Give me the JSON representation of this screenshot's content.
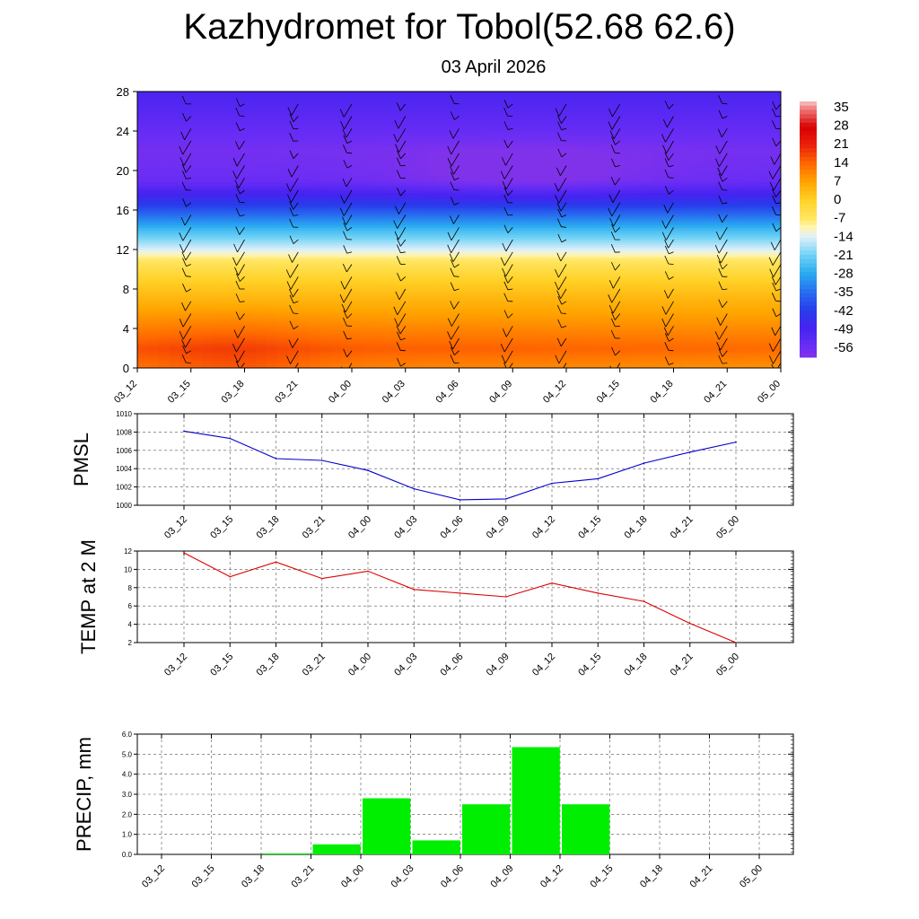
{
  "title": "Kazhydromet for Tobol(52.68 62.6)",
  "subtitle": "03 April 2026",
  "time_labels": [
    "03_12",
    "03_15",
    "03_18",
    "03_21",
    "04_00",
    "04_03",
    "04_06",
    "04_09",
    "04_12",
    "04_15",
    "04_18",
    "04_21",
    "05_00"
  ],
  "chart_data": [
    {
      "type": "heatmap",
      "title": "",
      "x": [
        "03_12",
        "03_15",
        "03_18",
        "03_21",
        "04_00",
        "04_03",
        "04_06",
        "04_09",
        "04_12",
        "04_15",
        "04_18",
        "04_21",
        "05_00"
      ],
      "y_ticks": [
        0,
        4,
        8,
        12,
        16,
        20,
        24,
        28
      ],
      "ylim": [
        0,
        28
      ],
      "colorbar_labels": [
        "35",
        "28",
        "21",
        "14",
        "7",
        "0",
        "-7",
        "-14",
        "-21",
        "-28",
        "-35",
        "-42",
        "-49",
        "-56"
      ],
      "colorbar_range": [
        -60,
        38
      ],
      "level_profile": [
        {
          "level": 0,
          "value": 12
        },
        {
          "level": 2,
          "value": 16
        },
        {
          "level": 5,
          "value": 9
        },
        {
          "level": 9,
          "value": 0
        },
        {
          "level": 11,
          "value": -7
        },
        {
          "level": 12,
          "value": -14
        },
        {
          "level": 14,
          "value": -25
        },
        {
          "level": 17,
          "value": -45
        },
        {
          "level": 19,
          "value": -56
        },
        {
          "level": 22,
          "value": -58
        },
        {
          "level": 28,
          "value": -50
        }
      ],
      "wind_barbs": true
    },
    {
      "type": "line",
      "ylabel": "PMSL",
      "x": [
        "03_12",
        "03_15",
        "03_18",
        "03_21",
        "04_00",
        "04_03",
        "04_06",
        "04_09",
        "04_12",
        "04_15",
        "04_18",
        "04_21",
        "05_00"
      ],
      "series": [
        {
          "values": [
            1008.1,
            1007.3,
            1005.1,
            1004.9,
            1003.8,
            1001.8,
            1000.6,
            1000.7,
            1002.4,
            1002.9,
            1004.6,
            1005.8,
            1006.9
          ],
          "color": "#0000cc"
        }
      ],
      "ylim": [
        1000,
        1010
      ],
      "y_ticks": [
        1000,
        1002,
        1004,
        1006,
        1008,
        1010
      ],
      "grid": true
    },
    {
      "type": "line",
      "ylabel": "TEMP at 2 M",
      "x": [
        "03_12",
        "03_15",
        "03_18",
        "03_21",
        "04_00",
        "04_03",
        "04_06",
        "04_09",
        "04_12",
        "04_15",
        "04_18",
        "04_21",
        "05_00"
      ],
      "series": [
        {
          "values": [
            11.8,
            9.2,
            10.8,
            9.0,
            9.8,
            7.8,
            7.4,
            7.0,
            8.5,
            7.4,
            6.5,
            4.1,
            2.0
          ],
          "color": "#dd0000"
        }
      ],
      "ylim": [
        2,
        12
      ],
      "y_ticks": [
        2,
        4,
        6,
        8,
        10,
        12
      ],
      "grid": true
    },
    {
      "type": "bar",
      "ylabel": "PRECIP, mm",
      "categories": [
        "03_12",
        "03_15",
        "03_18",
        "03_21",
        "04_00",
        "04_03",
        "04_06",
        "04_09",
        "04_12",
        "04_15",
        "04_18",
        "04_21",
        "05_00"
      ],
      "values": [
        0,
        0,
        0.05,
        0.5,
        2.8,
        0.7,
        2.5,
        5.35,
        2.5,
        0,
        0,
        0,
        0
      ],
      "ylim": [
        0,
        6
      ],
      "y_ticks": [
        "0.0",
        "1.0",
        "2.0",
        "3.0",
        "4.0",
        "5.0",
        "6.0"
      ],
      "bar_color": "#00ee00",
      "grid": true
    }
  ]
}
